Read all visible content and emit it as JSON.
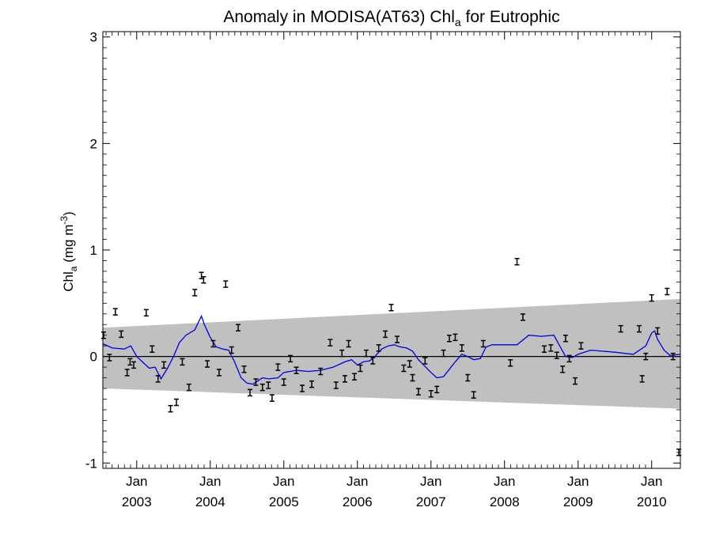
{
  "chart_data": {
    "type": "scatter",
    "title": {
      "main": "Anomaly in MODISA(AT63) Chl",
      "sub": "a",
      "tail": " for Eutrophic"
    },
    "ylabel": {
      "main": "Chl",
      "sub": "a",
      "mid": " (mg m",
      "sup": "-3",
      "end": ")"
    },
    "ylim": [
      -1.05,
      3.05
    ],
    "xlim": [
      2002.54,
      2010.39
    ],
    "y_ticks": [
      -1,
      0,
      1,
      2,
      3
    ],
    "y_tick_labels": [
      "-1",
      "0",
      "1",
      "2",
      "3"
    ],
    "x_ticks": [
      2003,
      2004,
      2005,
      2006,
      2007,
      2008,
      2009,
      2010
    ],
    "x_tick_month": "Jan",
    "x_tick_years": [
      "2003",
      "2004",
      "2005",
      "2006",
      "2007",
      "2008",
      "2009",
      "2010"
    ],
    "grid": false,
    "colors": {
      "smooth_line": "#0000e0",
      "band": "#c0c0c0",
      "points": "#000000",
      "zero_line": "#000000"
    },
    "band": {
      "x": [
        2002.54,
        2010.39
      ],
      "upper": [
        0.27,
        0.54
      ],
      "lower": [
        -0.3,
        -0.49
      ]
    },
    "points": [
      {
        "x": 2002.55,
        "y": 0.2
      },
      {
        "x": 2002.63,
        "y": -0.01
      },
      {
        "x": 2002.71,
        "y": 0.42
      },
      {
        "x": 2002.79,
        "y": 0.21
      },
      {
        "x": 2002.87,
        "y": -0.15
      },
      {
        "x": 2002.91,
        "y": -0.05
      },
      {
        "x": 2002.96,
        "y": -0.08
      },
      {
        "x": 2003.13,
        "y": 0.41
      },
      {
        "x": 2003.21,
        "y": 0.07
      },
      {
        "x": 2003.29,
        "y": -0.21
      },
      {
        "x": 2003.37,
        "y": -0.08
      },
      {
        "x": 2003.46,
        "y": -0.49
      },
      {
        "x": 2003.54,
        "y": -0.43
      },
      {
        "x": 2003.62,
        "y": -0.05
      },
      {
        "x": 2003.71,
        "y": -0.29
      },
      {
        "x": 2003.79,
        "y": 0.6
      },
      {
        "x": 2003.88,
        "y": 0.76
      },
      {
        "x": 2003.91,
        "y": 0.72
      },
      {
        "x": 2003.96,
        "y": -0.07
      },
      {
        "x": 2004.04,
        "y": 0.12
      },
      {
        "x": 2004.12,
        "y": -0.15
      },
      {
        "x": 2004.21,
        "y": 0.68
      },
      {
        "x": 2004.29,
        "y": 0.06
      },
      {
        "x": 2004.38,
        "y": 0.27
      },
      {
        "x": 2004.46,
        "y": -0.12
      },
      {
        "x": 2004.54,
        "y": -0.34
      },
      {
        "x": 2004.62,
        "y": -0.24
      },
      {
        "x": 2004.71,
        "y": -0.29
      },
      {
        "x": 2004.79,
        "y": -0.27
      },
      {
        "x": 2004.84,
        "y": -0.39
      },
      {
        "x": 2004.92,
        "y": -0.1
      },
      {
        "x": 2005.0,
        "y": -0.24
      },
      {
        "x": 2005.09,
        "y": -0.02
      },
      {
        "x": 2005.17,
        "y": -0.13
      },
      {
        "x": 2005.25,
        "y": -0.3
      },
      {
        "x": 2005.38,
        "y": -0.26
      },
      {
        "x": 2005.5,
        "y": -0.14
      },
      {
        "x": 2005.63,
        "y": 0.13
      },
      {
        "x": 2005.71,
        "y": -0.27
      },
      {
        "x": 2005.79,
        "y": 0.03
      },
      {
        "x": 2005.83,
        "y": -0.21
      },
      {
        "x": 2005.88,
        "y": 0.12
      },
      {
        "x": 2005.96,
        "y": -0.19
      },
      {
        "x": 2006.04,
        "y": -0.11
      },
      {
        "x": 2006.12,
        "y": 0.03
      },
      {
        "x": 2006.21,
        "y": -0.04
      },
      {
        "x": 2006.29,
        "y": 0.08
      },
      {
        "x": 2006.38,
        "y": 0.21
      },
      {
        "x": 2006.46,
        "y": 0.46
      },
      {
        "x": 2006.54,
        "y": 0.16
      },
      {
        "x": 2006.63,
        "y": -0.11
      },
      {
        "x": 2006.71,
        "y": -0.07
      },
      {
        "x": 2006.75,
        "y": -0.2
      },
      {
        "x": 2006.83,
        "y": -0.33
      },
      {
        "x": 2006.92,
        "y": -0.04
      },
      {
        "x": 2007.0,
        "y": -0.35
      },
      {
        "x": 2007.08,
        "y": -0.31
      },
      {
        "x": 2007.17,
        "y": 0.03
      },
      {
        "x": 2007.25,
        "y": 0.17
      },
      {
        "x": 2007.33,
        "y": 0.18
      },
      {
        "x": 2007.42,
        "y": 0.08
      },
      {
        "x": 2007.5,
        "y": -0.2
      },
      {
        "x": 2007.58,
        "y": -0.36
      },
      {
        "x": 2007.71,
        "y": 0.12
      },
      {
        "x": 2008.08,
        "y": -0.06
      },
      {
        "x": 2008.17,
        "y": 0.89
      },
      {
        "x": 2008.25,
        "y": 0.37
      },
      {
        "x": 2008.54,
        "y": 0.07
      },
      {
        "x": 2008.63,
        "y": 0.08
      },
      {
        "x": 2008.71,
        "y": 0.01
      },
      {
        "x": 2008.79,
        "y": -0.12
      },
      {
        "x": 2008.83,
        "y": 0.17
      },
      {
        "x": 2008.88,
        "y": -0.02
      },
      {
        "x": 2008.96,
        "y": -0.23
      },
      {
        "x": 2009.04,
        "y": 0.1
      },
      {
        "x": 2009.58,
        "y": 0.26
      },
      {
        "x": 2009.83,
        "y": 0.26
      },
      {
        "x": 2009.87,
        "y": -0.21
      },
      {
        "x": 2009.92,
        "y": 0.0
      },
      {
        "x": 2010.0,
        "y": 0.55
      },
      {
        "x": 2010.08,
        "y": 0.24
      },
      {
        "x": 2010.21,
        "y": 0.61
      },
      {
        "x": 2010.29,
        "y": 0.0
      },
      {
        "x": 2010.37,
        "y": -0.9
      }
    ],
    "smooth_line": {
      "x": [
        2002.54,
        2002.67,
        2002.83,
        2002.92,
        2003.0,
        2003.17,
        2003.25,
        2003.33,
        2003.42,
        2003.5,
        2003.58,
        2003.67,
        2003.79,
        2003.88,
        2003.92,
        2004.0,
        2004.08,
        2004.17,
        2004.25,
        2004.33,
        2004.42,
        2004.5,
        2004.58,
        2004.71,
        2004.79,
        2004.92,
        2005.0,
        2005.17,
        2005.33,
        2005.5,
        2005.67,
        2005.83,
        2005.92,
        2006.0,
        2006.08,
        2006.17,
        2006.25,
        2006.33,
        2006.42,
        2006.5,
        2006.58,
        2006.67,
        2006.75,
        2006.83,
        2007.0,
        2007.08,
        2007.17,
        2007.25,
        2007.33,
        2007.42,
        2007.5,
        2007.58,
        2007.67,
        2007.75,
        2007.83,
        2008.0,
        2008.17,
        2008.33,
        2008.5,
        2008.67,
        2008.75,
        2008.83,
        2008.92,
        2009.0,
        2009.17,
        2009.33,
        2009.5,
        2009.75,
        2009.92,
        2010.0,
        2010.04,
        2010.08,
        2010.17,
        2010.25,
        2010.39
      ],
      "y": [
        0.12,
        0.08,
        0.07,
        0.1,
        0.0,
        -0.11,
        -0.1,
        -0.21,
        -0.11,
        0.0,
        0.13,
        0.2,
        0.25,
        0.38,
        0.3,
        0.18,
        0.09,
        0.07,
        0.06,
        -0.05,
        -0.2,
        -0.25,
        -0.26,
        -0.2,
        -0.21,
        -0.2,
        -0.15,
        -0.13,
        -0.14,
        -0.13,
        -0.1,
        -0.05,
        -0.03,
        -0.08,
        -0.05,
        -0.04,
        0.01,
        0.07,
        0.1,
        0.11,
        0.09,
        0.08,
        0.05,
        -0.03,
        -0.15,
        -0.2,
        -0.19,
        -0.12,
        -0.05,
        0.02,
        0.0,
        -0.03,
        -0.02,
        0.09,
        0.11,
        0.11,
        0.11,
        0.2,
        0.19,
        0.2,
        0.1,
        0.0,
        -0.01,
        0.02,
        0.06,
        0.05,
        0.04,
        0.02,
        0.1,
        0.22,
        0.24,
        0.16,
        0.06,
        0.01,
        0.02
      ]
    }
  }
}
